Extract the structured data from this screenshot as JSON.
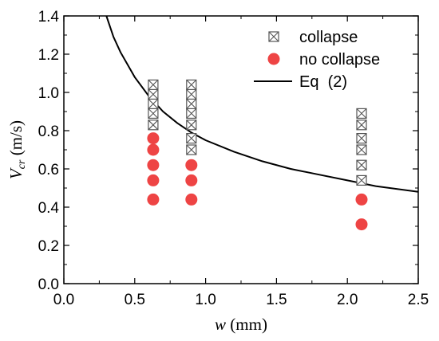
{
  "chart_data": {
    "type": "scatter",
    "xlabel": {
      "main": "w",
      "unit": " (mm)"
    },
    "ylabel": {
      "main": "V",
      "sub": "cr",
      "unit": " (m/s)"
    },
    "xlim": [
      0.0,
      2.5
    ],
    "ylim": [
      0.0,
      1.4
    ],
    "xticks": [
      "0.0",
      "0.5",
      "1.0",
      "1.5",
      "2.0",
      "2.5"
    ],
    "yticks": [
      "0.0",
      "0.2",
      "0.4",
      "0.6",
      "0.8",
      "1.0",
      "1.2",
      "1.4"
    ],
    "grid": false,
    "legend_position": "top-right",
    "series": [
      {
        "name": "collapse",
        "marker": "boxed-x",
        "color": "#555555",
        "points": [
          [
            0.63,
            0.83
          ],
          [
            0.63,
            0.89
          ],
          [
            0.63,
            0.94
          ],
          [
            0.63,
            0.99
          ],
          [
            0.63,
            1.04
          ],
          [
            0.9,
            0.7
          ],
          [
            0.9,
            0.76
          ],
          [
            0.9,
            0.83
          ],
          [
            0.9,
            0.89
          ],
          [
            0.9,
            0.94
          ],
          [
            0.9,
            0.99
          ],
          [
            0.9,
            1.04
          ],
          [
            2.1,
            0.54
          ],
          [
            2.1,
            0.62
          ],
          [
            2.1,
            0.7
          ],
          [
            2.1,
            0.76
          ],
          [
            2.1,
            0.83
          ],
          [
            2.1,
            0.89
          ]
        ]
      },
      {
        "name": "no collapse",
        "marker": "filled-circle",
        "color": "#ee4444",
        "points": [
          [
            0.63,
            0.44
          ],
          [
            0.63,
            0.54
          ],
          [
            0.63,
            0.62
          ],
          [
            0.63,
            0.7
          ],
          [
            0.63,
            0.76
          ],
          [
            0.9,
            0.44
          ],
          [
            0.9,
            0.54
          ],
          [
            0.9,
            0.62
          ],
          [
            2.1,
            0.31
          ],
          [
            2.1,
            0.44
          ]
        ]
      },
      {
        "name": "Eq  (2)",
        "type": "line",
        "color": "#000000",
        "points": [
          [
            0.3,
            1.4
          ],
          [
            0.35,
            1.29
          ],
          [
            0.4,
            1.21
          ],
          [
            0.5,
            1.08
          ],
          [
            0.6,
            0.98
          ],
          [
            0.7,
            0.9
          ],
          [
            0.8,
            0.84
          ],
          [
            0.9,
            0.79
          ],
          [
            1.0,
            0.75
          ],
          [
            1.2,
            0.69
          ],
          [
            1.4,
            0.64
          ],
          [
            1.6,
            0.6
          ],
          [
            1.8,
            0.57
          ],
          [
            2.0,
            0.54
          ],
          [
            2.2,
            0.51
          ],
          [
            2.5,
            0.48
          ]
        ]
      }
    ]
  }
}
